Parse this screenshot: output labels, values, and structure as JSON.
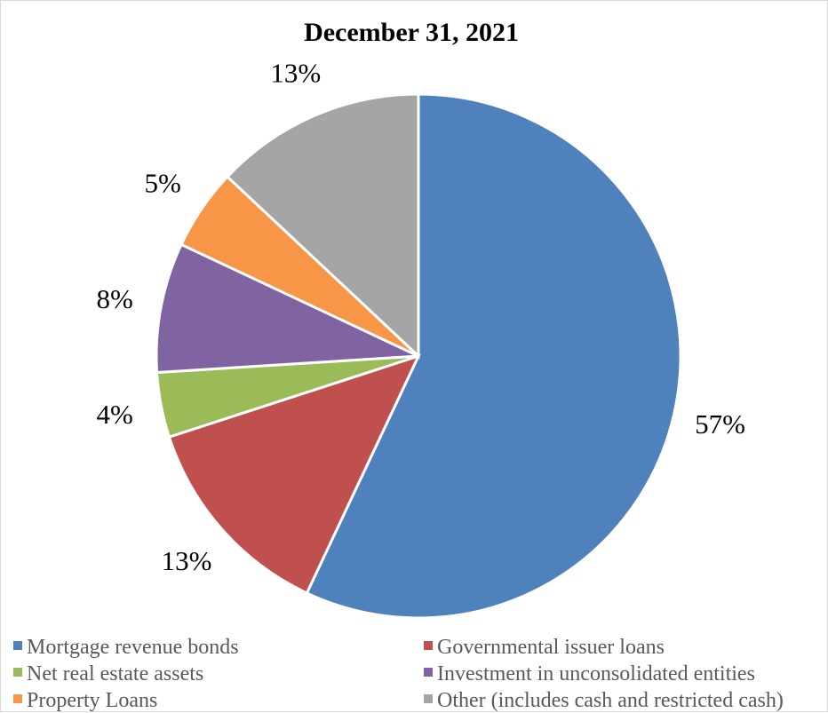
{
  "chart_data": {
    "type": "pie",
    "title": "December 31, 2021",
    "slices": [
      {
        "label": "Mortgage revenue bonds",
        "value": 57,
        "display": "57%",
        "color": "#4F81BD"
      },
      {
        "label": "Governmental issuer loans",
        "value": 13,
        "display": "13%",
        "color": "#C0504D"
      },
      {
        "label": "Net real estate assets",
        "value": 4,
        "display": "4%",
        "color": "#9BBB59"
      },
      {
        "label": "Investment in unconsolidated entities",
        "value": 8,
        "display": "8%",
        "color": "#8064A2"
      },
      {
        "label": "Property Loans",
        "value": 5,
        "display": "5%",
        "color": "#F79646"
      },
      {
        "label": "Other (includes cash and restricted cash)",
        "value": 13,
        "display": "13%",
        "color": "#A5A5A5"
      }
    ],
    "legend_position": "bottom"
  }
}
